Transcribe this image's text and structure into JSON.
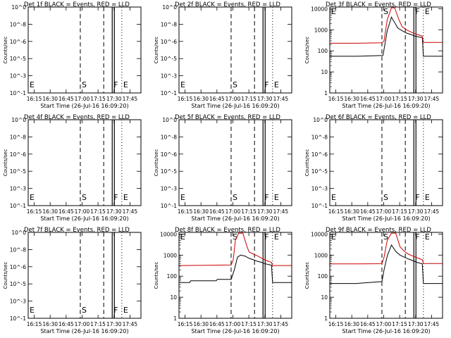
{
  "window": {
    "background": "#ffffff"
  },
  "panel_common": {
    "start_min": 0,
    "end_min": 106,
    "x_tick_labels": [
      "16:15",
      "16:30",
      "16:45",
      "17:00",
      "17:15",
      "17:30",
      "17:45"
    ],
    "x_tick_minutes": [
      5.67,
      20.67,
      35.67,
      50.67,
      65.67,
      80.67,
      95.67
    ],
    "xlabel": "Start Time (26-Jul-16 16:09:20)",
    "ylabel": "Counts/sec",
    "empty_y_ticks": [
      "10^-1",
      "10^-3",
      "10^-5",
      "10^-6",
      "10^-8",
      "10^0"
    ],
    "data_y_ticks": [
      "1",
      "10",
      "100",
      "1000",
      "10000"
    ],
    "markers": [
      {
        "label": "E",
        "minute": 0,
        "style": "dotted"
      },
      {
        "label": "S",
        "minute": 49,
        "style": "dashed"
      },
      {
        "label": "",
        "minute": 71,
        "style": "dashed"
      },
      {
        "label": "F",
        "minute": 79,
        "style": "solid"
      },
      {
        "label": "E",
        "minute": 88,
        "style": "dotted"
      }
    ],
    "colors": {
      "events": "#000000",
      "lld": "#cc0000",
      "axis": "#000000"
    }
  },
  "chart_data": [
    {
      "type": "line",
      "title": "Det 1f BLACK = Events, RED = LLD",
      "has_data": false
    },
    {
      "type": "line",
      "title": "Det 2f BLACK = Events, RED = LLD",
      "has_data": false
    },
    {
      "type": "line",
      "title": "Det 3f BLACK = Events, RED = LLD",
      "has_data": true,
      "ylim": [
        1,
        12000
      ],
      "log_y": true,
      "series": [
        {
          "name": "Events",
          "color": "#000000",
          "x": [
            0,
            25,
            50,
            54,
            58,
            64,
            68,
            72,
            76,
            80,
            87,
            88,
            106
          ],
          "y": [
            55,
            55,
            60,
            900,
            4000,
            1200,
            900,
            700,
            600,
            500,
            420,
            55,
            55
          ]
        },
        {
          "name": "LLD",
          "color": "#cc0000",
          "x": [
            0,
            25,
            49,
            51,
            54,
            58,
            61,
            65,
            68,
            72,
            76,
            80,
            87,
            88,
            106
          ],
          "y": [
            230,
            230,
            240,
            300,
            3000,
            11000,
            11000,
            3000,
            1400,
            1000,
            800,
            650,
            500,
            250,
            250
          ]
        }
      ]
    },
    {
      "type": "line",
      "title": "Det 4f BLACK = Events, RED = LLD",
      "has_data": false
    },
    {
      "type": "line",
      "title": "Det 5f BLACK = Events, RED = LLD",
      "has_data": false
    },
    {
      "type": "line",
      "title": "Det 6f BLACK = Events, RED = LLD",
      "has_data": false
    },
    {
      "type": "line",
      "title": "Det 7f BLACK = Events, RED = LLD",
      "has_data": false
    },
    {
      "type": "line",
      "title": "Det 8f BLACK = Events, RED = LLD",
      "has_data": true,
      "ylim": [
        1,
        12000
      ],
      "log_y": true,
      "series": [
        {
          "name": "Events",
          "color": "#000000",
          "x": [
            0,
            10,
            11,
            35,
            36,
            49,
            52,
            55,
            58,
            62,
            66,
            70,
            74,
            78,
            80,
            87,
            88,
            106
          ],
          "y": [
            50,
            50,
            60,
            60,
            70,
            70,
            200,
            800,
            1000,
            900,
            700,
            600,
            500,
            450,
            400,
            330,
            50,
            50
          ]
        },
        {
          "name": "LLD",
          "color": "#cc0000",
          "x": [
            0,
            25,
            49,
            51,
            53,
            56,
            60,
            64,
            66,
            70,
            74,
            78,
            82,
            87,
            88,
            106
          ],
          "y": [
            320,
            330,
            340,
            600,
            5000,
            11000,
            11000,
            2500,
            1400,
            1100,
            900,
            700,
            550,
            450,
            320,
            320
          ]
        }
      ]
    },
    {
      "type": "line",
      "title": "Det 9f BLACK = Events, RED = LLD",
      "has_data": true,
      "ylim": [
        1,
        12000
      ],
      "log_y": true,
      "series": [
        {
          "name": "Events",
          "color": "#000000",
          "x": [
            0,
            25,
            49,
            51,
            54,
            58,
            62,
            66,
            70,
            74,
            78,
            82,
            87,
            88,
            106
          ],
          "y": [
            45,
            45,
            55,
            200,
            900,
            3000,
            1500,
            1000,
            800,
            650,
            550,
            450,
            380,
            45,
            45
          ]
        },
        {
          "name": "LLD",
          "color": "#cc0000",
          "x": [
            0,
            25,
            49,
            51,
            54,
            58,
            62,
            66,
            70,
            74,
            78,
            82,
            87,
            88,
            106
          ],
          "y": [
            380,
            380,
            390,
            800,
            5000,
            11000,
            11000,
            2500,
            1500,
            1100,
            900,
            750,
            600,
            400,
            400
          ]
        }
      ]
    }
  ]
}
